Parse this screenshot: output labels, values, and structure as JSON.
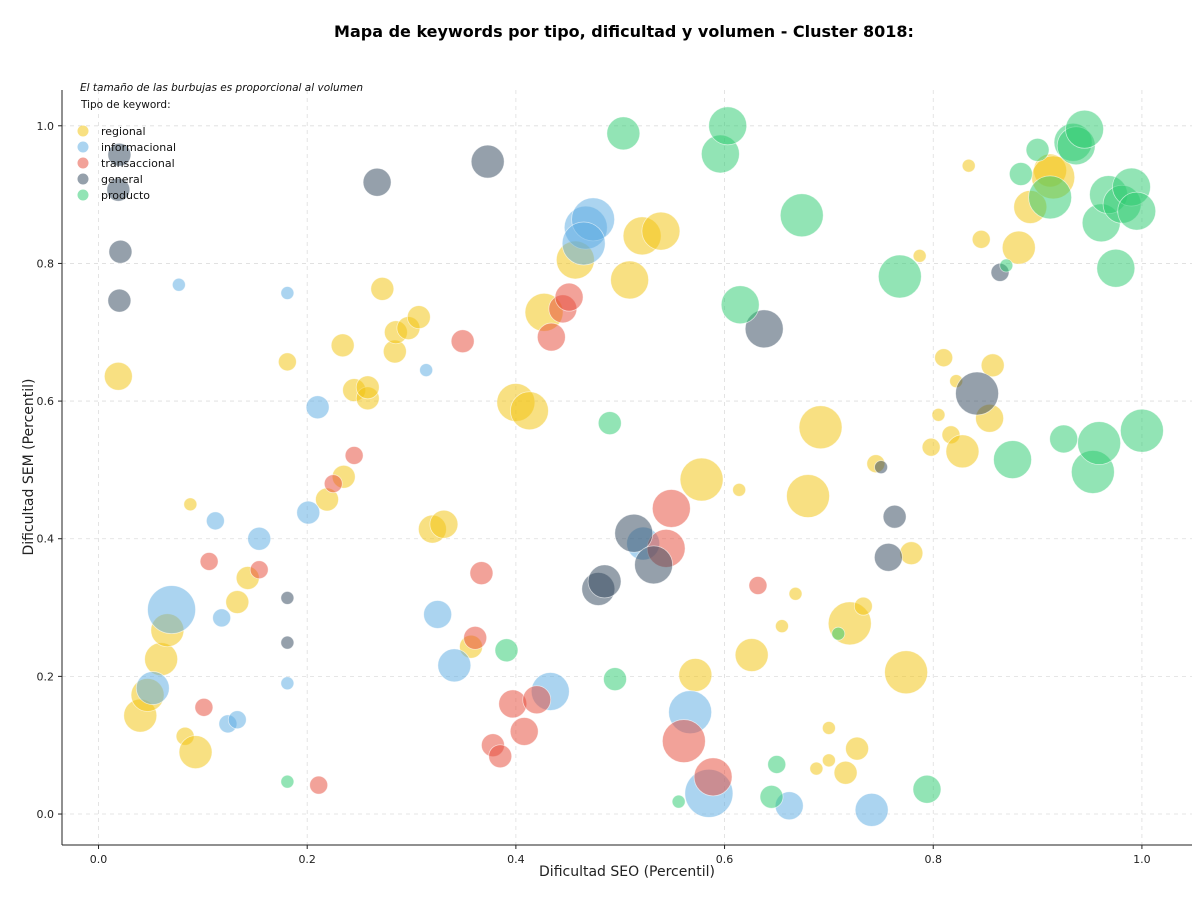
{
  "chart_data": {
    "type": "scatter",
    "title": "Mapa de keywords por tipo, dificultad y volumen - Cluster 8018:",
    "xlabel": "Dificultad SEO (Percentil)",
    "ylabel": "Dificultad SEM (Percentil)",
    "xlim": [
      -0.035,
      1.048
    ],
    "ylim": [
      -0.045,
      1.052
    ],
    "xticks": [
      "0.0",
      "0.2",
      "0.4",
      "0.6",
      "0.8",
      "1.0"
    ],
    "yticks": [
      "0.0",
      "0.2",
      "0.4",
      "0.6",
      "0.8",
      "1.0"
    ],
    "grid": true,
    "note": "El tamaño de las burbujas es proporcional al volumen",
    "legend_title": "Tipo de keyword:",
    "legend_position": "top-left",
    "series": [
      {
        "name": "regional",
        "color": "#F1C40F",
        "points": [
          {
            "x": 0.04,
            "y": 0.143,
            "s": 5
          },
          {
            "x": 0.047,
            "y": 0.173,
            "s": 5
          },
          {
            "x": 0.06,
            "y": 0.225,
            "s": 5
          },
          {
            "x": 0.066,
            "y": 0.267,
            "s": 5
          },
          {
            "x": 0.083,
            "y": 0.113,
            "s": 2
          },
          {
            "x": 0.088,
            "y": 0.45,
            "s": 1
          },
          {
            "x": 0.093,
            "y": 0.09,
            "s": 5
          },
          {
            "x": 0.133,
            "y": 0.308,
            "s": 3
          },
          {
            "x": 0.143,
            "y": 0.343,
            "s": 3
          },
          {
            "x": 0.019,
            "y": 0.636,
            "s": 4
          },
          {
            "x": 0.181,
            "y": 0.657,
            "s": 2
          },
          {
            "x": 0.219,
            "y": 0.457,
            "s": 3
          },
          {
            "x": 0.235,
            "y": 0.49,
            "s": 3
          },
          {
            "x": 0.234,
            "y": 0.681,
            "s": 3
          },
          {
            "x": 0.245,
            "y": 0.616,
            "s": 3
          },
          {
            "x": 0.258,
            "y": 0.604,
            "s": 3
          },
          {
            "x": 0.258,
            "y": 0.62,
            "s": 3
          },
          {
            "x": 0.272,
            "y": 0.763,
            "s": 3
          },
          {
            "x": 0.284,
            "y": 0.672,
            "s": 3
          },
          {
            "x": 0.285,
            "y": 0.7,
            "s": 3
          },
          {
            "x": 0.297,
            "y": 0.706,
            "s": 3
          },
          {
            "x": 0.307,
            "y": 0.722,
            "s": 3
          },
          {
            "x": 0.32,
            "y": 0.414,
            "s": 4
          },
          {
            "x": 0.331,
            "y": 0.421,
            "s": 4
          },
          {
            "x": 0.357,
            "y": 0.243,
            "s": 3
          },
          {
            "x": 0.4,
            "y": 0.598,
            "s": 6
          },
          {
            "x": 0.413,
            "y": 0.586,
            "s": 6
          },
          {
            "x": 0.427,
            "y": 0.729,
            "s": 6
          },
          {
            "x": 0.457,
            "y": 0.805,
            "s": 6
          },
          {
            "x": 0.509,
            "y": 0.776,
            "s": 6
          },
          {
            "x": 0.521,
            "y": 0.84,
            "s": 6
          },
          {
            "x": 0.539,
            "y": 0.847,
            "s": 6
          },
          {
            "x": 0.578,
            "y": 0.486,
            "s": 7
          },
          {
            "x": 0.572,
            "y": 0.202,
            "s": 5
          },
          {
            "x": 0.614,
            "y": 0.471,
            "s": 1
          },
          {
            "x": 0.626,
            "y": 0.231,
            "s": 5
          },
          {
            "x": 0.655,
            "y": 0.273,
            "s": 1
          },
          {
            "x": 0.668,
            "y": 0.32,
            "s": 1
          },
          {
            "x": 0.68,
            "y": 0.462,
            "s": 7
          },
          {
            "x": 0.692,
            "y": 0.562,
            "s": 7
          },
          {
            "x": 0.688,
            "y": 0.066,
            "s": 1
          },
          {
            "x": 0.7,
            "y": 0.125,
            "s": 1
          },
          {
            "x": 0.7,
            "y": 0.078,
            "s": 1
          },
          {
            "x": 0.716,
            "y": 0.06,
            "s": 3
          },
          {
            "x": 0.72,
            "y": 0.277,
            "s": 7
          },
          {
            "x": 0.727,
            "y": 0.095,
            "s": 3
          },
          {
            "x": 0.733,
            "y": 0.302,
            "s": 2
          },
          {
            "x": 0.745,
            "y": 0.509,
            "s": 2
          },
          {
            "x": 0.774,
            "y": 0.206,
            "s": 7
          },
          {
            "x": 0.779,
            "y": 0.379,
            "s": 3
          },
          {
            "x": 0.787,
            "y": 0.811,
            "s": 1
          },
          {
            "x": 0.798,
            "y": 0.533,
            "s": 2
          },
          {
            "x": 0.805,
            "y": 0.58,
            "s": 1
          },
          {
            "x": 0.81,
            "y": 0.663,
            "s": 2
          },
          {
            "x": 0.817,
            "y": 0.551,
            "s": 2
          },
          {
            "x": 0.822,
            "y": 0.629,
            "s": 1
          },
          {
            "x": 0.828,
            "y": 0.527,
            "s": 5
          },
          {
            "x": 0.834,
            "y": 0.942,
            "s": 1
          },
          {
            "x": 0.846,
            "y": 0.835,
            "s": 2
          },
          {
            "x": 0.854,
            "y": 0.575,
            "s": 4
          },
          {
            "x": 0.857,
            "y": 0.652,
            "s": 3
          },
          {
            "x": 0.882,
            "y": 0.823,
            "s": 5
          },
          {
            "x": 0.893,
            "y": 0.882,
            "s": 5
          },
          {
            "x": 0.912,
            "y": 0.935,
            "s": 5
          },
          {
            "x": 0.915,
            "y": 0.925,
            "s": 7
          }
        ]
      },
      {
        "name": "informacional",
        "color": "#5DADE2",
        "points": [
          {
            "x": 0.052,
            "y": 0.183,
            "s": 5
          },
          {
            "x": 0.07,
            "y": 0.297,
            "s": 8
          },
          {
            "x": 0.077,
            "y": 0.769,
            "s": 1
          },
          {
            "x": 0.112,
            "y": 0.426,
            "s": 2
          },
          {
            "x": 0.118,
            "y": 0.285,
            "s": 2
          },
          {
            "x": 0.124,
            "y": 0.131,
            "s": 2
          },
          {
            "x": 0.133,
            "y": 0.137,
            "s": 2
          },
          {
            "x": 0.154,
            "y": 0.4,
            "s": 3
          },
          {
            "x": 0.181,
            "y": 0.757,
            "s": 1
          },
          {
            "x": 0.181,
            "y": 0.19,
            "s": 1
          },
          {
            "x": 0.201,
            "y": 0.438,
            "s": 3
          },
          {
            "x": 0.21,
            "y": 0.591,
            "s": 3
          },
          {
            "x": 0.314,
            "y": 0.645,
            "s": 1
          },
          {
            "x": 0.325,
            "y": 0.29,
            "s": 4
          },
          {
            "x": 0.341,
            "y": 0.216,
            "s": 5
          },
          {
            "x": 0.433,
            "y": 0.178,
            "s": 6
          },
          {
            "x": 0.467,
            "y": 0.852,
            "s": 7
          },
          {
            "x": 0.474,
            "y": 0.864,
            "s": 7
          },
          {
            "x": 0.465,
            "y": 0.829,
            "s": 7
          },
          {
            "x": 0.522,
            "y": 0.393,
            "s": 5
          },
          {
            "x": 0.567,
            "y": 0.148,
            "s": 7
          },
          {
            "x": 0.585,
            "y": 0.03,
            "s": 8
          },
          {
            "x": 0.662,
            "y": 0.012,
            "s": 4
          },
          {
            "x": 0.741,
            "y": 0.006,
            "s": 5
          }
        ]
      },
      {
        "name": "transaccional",
        "color": "#E74C3C",
        "points": [
          {
            "x": 0.101,
            "y": 0.155,
            "s": 2
          },
          {
            "x": 0.106,
            "y": 0.367,
            "s": 2
          },
          {
            "x": 0.154,
            "y": 0.355,
            "s": 2
          },
          {
            "x": 0.211,
            "y": 0.042,
            "s": 2
          },
          {
            "x": 0.225,
            "y": 0.48,
            "s": 2
          },
          {
            "x": 0.245,
            "y": 0.521,
            "s": 2
          },
          {
            "x": 0.349,
            "y": 0.687,
            "s": 3
          },
          {
            "x": 0.361,
            "y": 0.256,
            "s": 3
          },
          {
            "x": 0.367,
            "y": 0.35,
            "s": 3
          },
          {
            "x": 0.378,
            "y": 0.1,
            "s": 3
          },
          {
            "x": 0.385,
            "y": 0.084,
            "s": 3
          },
          {
            "x": 0.397,
            "y": 0.16,
            "s": 4
          },
          {
            "x": 0.408,
            "y": 0.12,
            "s": 4
          },
          {
            "x": 0.42,
            "y": 0.166,
            "s": 4
          },
          {
            "x": 0.434,
            "y": 0.693,
            "s": 4
          },
          {
            "x": 0.445,
            "y": 0.734,
            "s": 4
          },
          {
            "x": 0.451,
            "y": 0.751,
            "s": 4
          },
          {
            "x": 0.549,
            "y": 0.444,
            "s": 6
          },
          {
            "x": 0.544,
            "y": 0.386,
            "s": 6
          },
          {
            "x": 0.561,
            "y": 0.106,
            "s": 7
          },
          {
            "x": 0.589,
            "y": 0.054,
            "s": 6
          },
          {
            "x": 0.632,
            "y": 0.332,
            "s": 2
          }
        ]
      },
      {
        "name": "general",
        "color": "#34495E",
        "points": [
          {
            "x": 0.02,
            "y": 0.958,
            "s": 3
          },
          {
            "x": 0.019,
            "y": 0.907,
            "s": 3
          },
          {
            "x": 0.021,
            "y": 0.817,
            "s": 3
          },
          {
            "x": 0.02,
            "y": 0.746,
            "s": 3
          },
          {
            "x": 0.181,
            "y": 0.314,
            "s": 1
          },
          {
            "x": 0.181,
            "y": 0.249,
            "s": 1
          },
          {
            "x": 0.267,
            "y": 0.918,
            "s": 4
          },
          {
            "x": 0.373,
            "y": 0.948,
            "s": 5
          },
          {
            "x": 0.479,
            "y": 0.327,
            "s": 5
          },
          {
            "x": 0.485,
            "y": 0.338,
            "s": 5
          },
          {
            "x": 0.513,
            "y": 0.408,
            "s": 6
          },
          {
            "x": 0.532,
            "y": 0.362,
            "s": 6
          },
          {
            "x": 0.638,
            "y": 0.705,
            "s": 6
          },
          {
            "x": 0.75,
            "y": 0.504,
            "s": 1
          },
          {
            "x": 0.757,
            "y": 0.373,
            "s": 4
          },
          {
            "x": 0.763,
            "y": 0.432,
            "s": 3
          },
          {
            "x": 0.842,
            "y": 0.611,
            "s": 7
          },
          {
            "x": 0.864,
            "y": 0.787,
            "s": 2
          }
        ]
      },
      {
        "name": "producto",
        "color": "#2ECC71",
        "points": [
          {
            "x": 0.181,
            "y": 0.047,
            "s": 1
          },
          {
            "x": 0.49,
            "y": 0.568,
            "s": 3
          },
          {
            "x": 0.495,
            "y": 0.196,
            "s": 3
          },
          {
            "x": 0.503,
            "y": 0.989,
            "s": 5
          },
          {
            "x": 0.391,
            "y": 0.238,
            "s": 3
          },
          {
            "x": 0.556,
            "y": 0.018,
            "s": 1
          },
          {
            "x": 0.596,
            "y": 0.959,
            "s": 6
          },
          {
            "x": 0.603,
            "y": 1.0,
            "s": 6
          },
          {
            "x": 0.615,
            "y": 0.74,
            "s": 6
          },
          {
            "x": 0.645,
            "y": 0.025,
            "s": 3
          },
          {
            "x": 0.65,
            "y": 0.072,
            "s": 2
          },
          {
            "x": 0.674,
            "y": 0.87,
            "s": 7
          },
          {
            "x": 0.709,
            "y": 0.262,
            "s": 1
          },
          {
            "x": 0.768,
            "y": 0.781,
            "s": 7
          },
          {
            "x": 0.794,
            "y": 0.036,
            "s": 4
          },
          {
            "x": 0.87,
            "y": 0.797,
            "s": 1
          },
          {
            "x": 0.876,
            "y": 0.515,
            "s": 6
          },
          {
            "x": 0.884,
            "y": 0.93,
            "s": 3
          },
          {
            "x": 0.9,
            "y": 0.965,
            "s": 3
          },
          {
            "x": 0.912,
            "y": 0.896,
            "s": 7
          },
          {
            "x": 0.925,
            "y": 0.545,
            "s": 4
          },
          {
            "x": 0.934,
            "y": 0.976,
            "s": 6
          },
          {
            "x": 0.937,
            "y": 0.971,
            "s": 6
          },
          {
            "x": 0.945,
            "y": 0.995,
            "s": 6
          },
          {
            "x": 0.953,
            "y": 0.497,
            "s": 7
          },
          {
            "x": 0.959,
            "y": 0.539,
            "s": 7
          },
          {
            "x": 0.961,
            "y": 0.859,
            "s": 6
          },
          {
            "x": 0.968,
            "y": 0.9,
            "s": 6
          },
          {
            "x": 0.975,
            "y": 0.793,
            "s": 6
          },
          {
            "x": 0.981,
            "y": 0.886,
            "s": 6
          },
          {
            "x": 0.99,
            "y": 0.911,
            "s": 6
          },
          {
            "x": 0.995,
            "y": 0.876,
            "s": 6
          },
          {
            "x": 1.0,
            "y": 0.557,
            "s": 7
          }
        ]
      }
    ]
  }
}
